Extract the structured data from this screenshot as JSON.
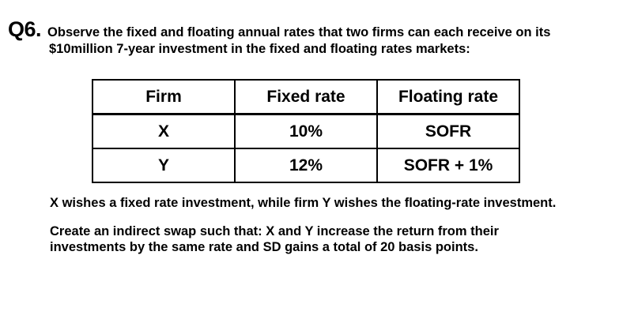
{
  "question": {
    "number": "Q6.",
    "text_line1": "Observe the fixed and floating annual rates that two firms can each receive on its",
    "text_line2": "$10million 7-year investment in the fixed and floating rates markets:"
  },
  "table": {
    "headers": [
      "Firm",
      "Fixed rate",
      "Floating rate"
    ],
    "rows": [
      [
        "X",
        "10%",
        "SOFR"
      ],
      [
        "Y",
        "12%",
        "SOFR + 1%"
      ]
    ]
  },
  "paragraphs": {
    "p1": "X wishes a fixed rate investment, while firm Y wishes the floating-rate investment.",
    "p2_line1": "Create an indirect swap such that: X and Y increase the return from their",
    "p2_line2": "investments by the same rate and SD gains a total of 20 basis points."
  }
}
